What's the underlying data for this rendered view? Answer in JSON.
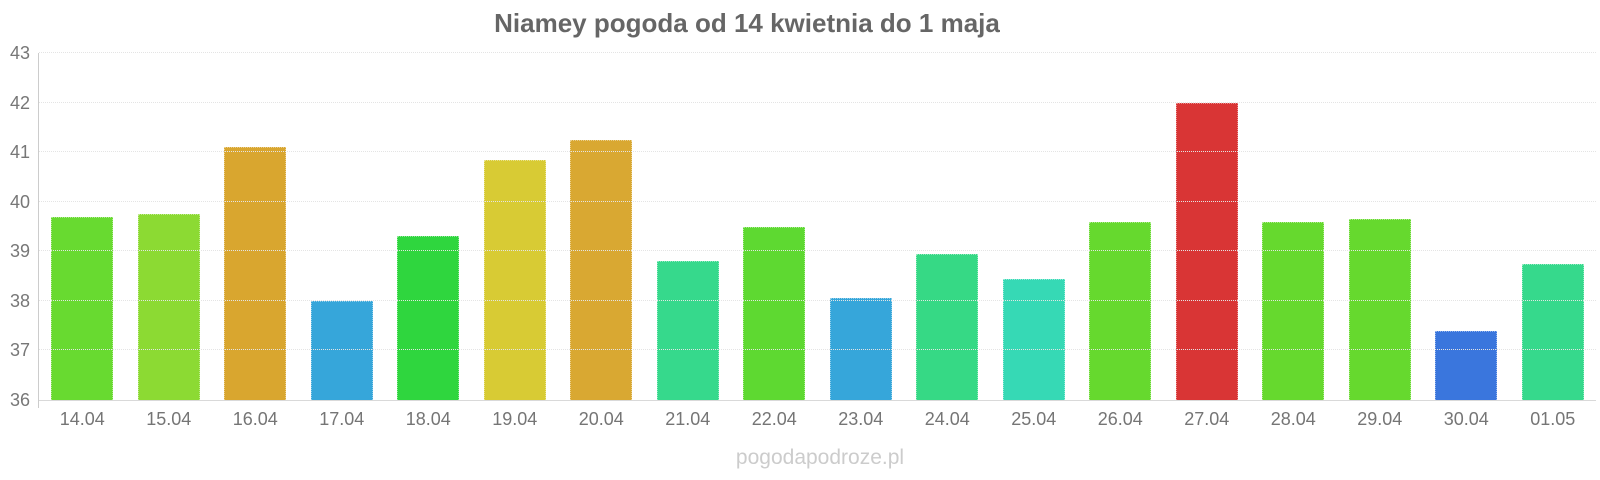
{
  "title": "Niamey pogoda od 14 kwietnia do 1 maja",
  "watermark": "pogodapodroze.pl",
  "palette": {
    "title_color": "#666666",
    "axis_label_color": "#777777",
    "x_label_color": "#757575",
    "gridline_color": "#e4e4e4",
    "axis_line_color": "#cccccc",
    "watermark_color": "#cccccc"
  },
  "chart_data": {
    "type": "bar",
    "title": "Niamey pogoda od 14 kwietnia do 1 maja",
    "xlabel": "",
    "ylabel": "",
    "ylim": [
      36,
      43
    ],
    "yticks": [
      36,
      37,
      38,
      39,
      40,
      41,
      42,
      43
    ],
    "grid": true,
    "legend": "none",
    "categories": [
      "14.04",
      "15.04",
      "16.04",
      "17.04",
      "18.04",
      "19.04",
      "20.04",
      "21.04",
      "22.04",
      "23.04",
      "24.04",
      "25.04",
      "26.04",
      "27.04",
      "28.04",
      "29.04",
      "30.04",
      "01.05"
    ],
    "values": [
      39.7,
      39.75,
      41.1,
      38.0,
      39.3,
      40.85,
      41.25,
      38.8,
      39.5,
      38.05,
      38.95,
      38.45,
      39.6,
      42.0,
      39.6,
      39.65,
      37.4,
      38.75
    ],
    "bar_colors": [
      "#68da30",
      "#8cda33",
      "#d9a62f",
      "#36a6da",
      "#2fd63e",
      "#d8cb34",
      "#d9a832",
      "#36d98c",
      "#5ed931",
      "#36a6da",
      "#36d985",
      "#36d9b5",
      "#66d92e",
      "#d93535",
      "#66d92e",
      "#66d92e",
      "#3a76dd",
      "#36d98c"
    ]
  }
}
